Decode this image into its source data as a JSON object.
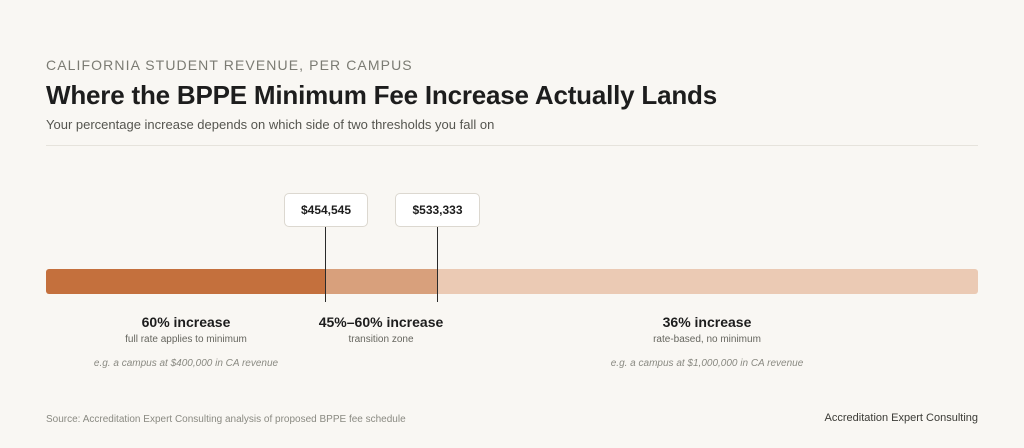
{
  "header": {
    "eyebrow": "CALIFORNIA STUDENT REVENUE, PER CAMPUS",
    "title": "Where the BPPE Minimum Fee Increase Actually Lands",
    "subtitle": "Your percentage increase depends on which side of two thresholds you fall on"
  },
  "thresholds": [
    {
      "label": "$454,545"
    },
    {
      "label": "$533,333"
    }
  ],
  "zones": [
    {
      "headline": "60% increase",
      "description": "full rate applies to minimum",
      "example": "e.g. a campus at $400,000 in CA revenue",
      "color": "#c4703d"
    },
    {
      "headline": "45%–60% increase",
      "description": "transition zone",
      "color": "#d8a07c"
    },
    {
      "headline": "36% increase",
      "description": "rate-based, no minimum",
      "example": "e.g. a campus at $1,000,000 in CA revenue",
      "color": "#ebcab4"
    }
  ],
  "footer": {
    "source": "Source: Accreditation Expert Consulting analysis of proposed BPPE fee schedule",
    "brand": "Accreditation Expert Consulting"
  }
}
